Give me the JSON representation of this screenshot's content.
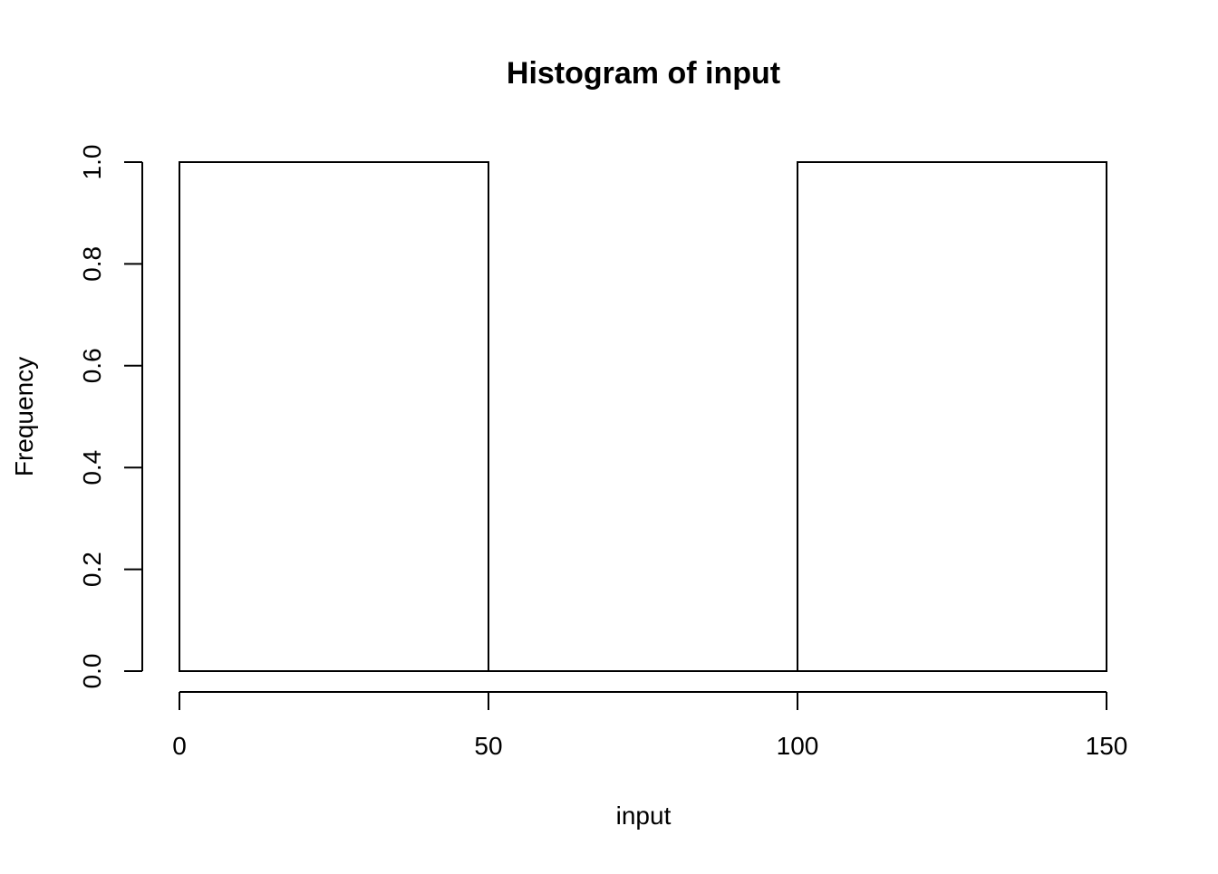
{
  "chart_data": {
    "type": "bar",
    "title": "Histogram of input",
    "xlabel": "input",
    "ylabel": "Frequency",
    "bins": [
      {
        "start": 0,
        "end": 50,
        "count": 1
      },
      {
        "start": 50,
        "end": 100,
        "count": 0
      },
      {
        "start": 100,
        "end": 150,
        "count": 1
      }
    ],
    "xlim": [
      0,
      150
    ],
    "ylim": [
      0,
      1
    ],
    "x_ticks": [
      "0",
      "50",
      "100",
      "150"
    ],
    "y_ticks": [
      "0.0",
      "0.2",
      "0.4",
      "0.6",
      "0.8",
      "1.0"
    ],
    "grid": false,
    "legend": "none",
    "colors": {
      "bar_fill": "#ffffff",
      "bar_stroke": "#000000",
      "axis": "#000000",
      "background": "#ffffff"
    }
  }
}
